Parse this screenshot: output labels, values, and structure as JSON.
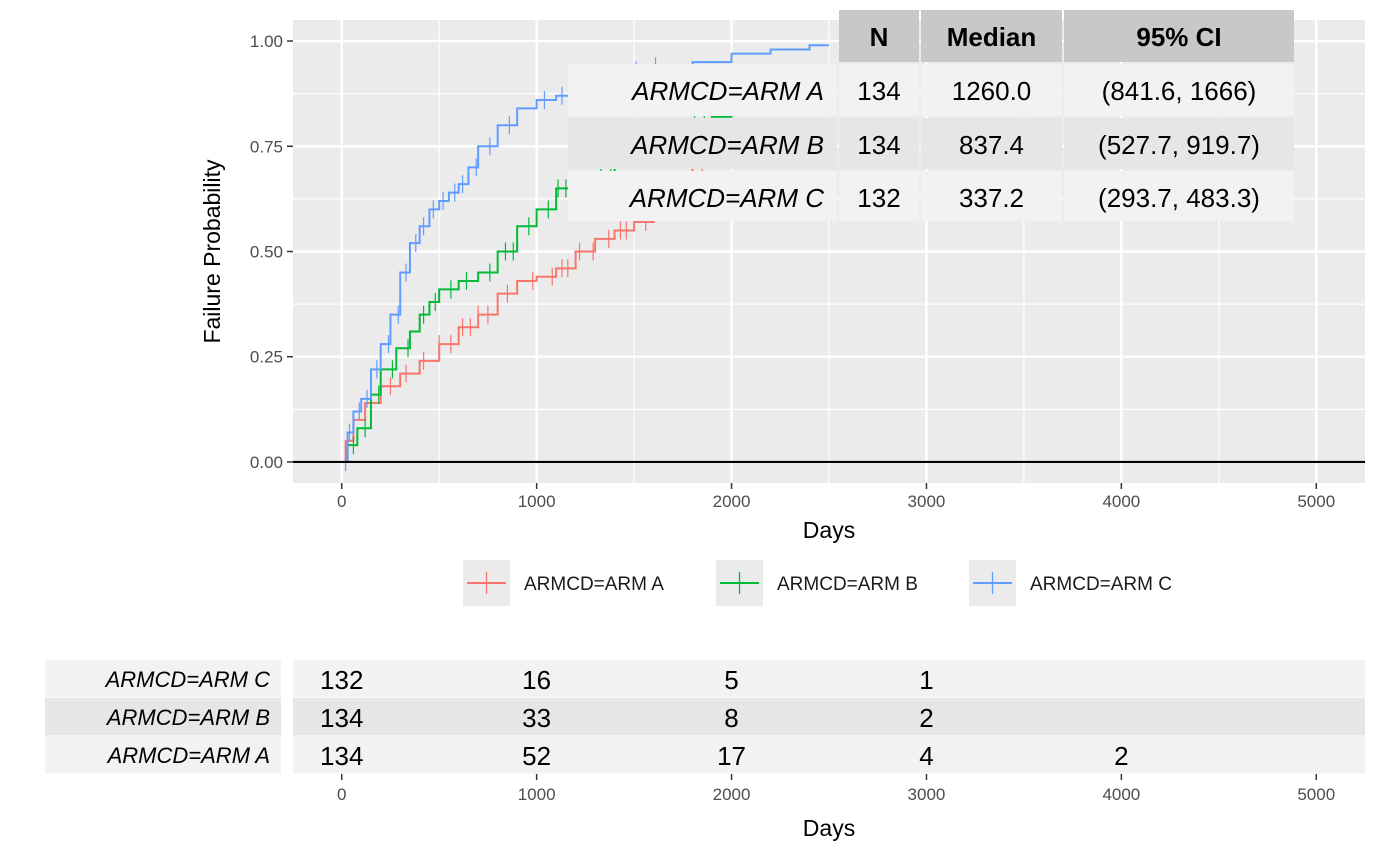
{
  "chart_data": {
    "type": "line",
    "step": true,
    "xlabel": "Days",
    "ylabel": "Failure Probability",
    "xlim": [
      -250,
      5250
    ],
    "ylim": [
      -0.05,
      1.05
    ],
    "x_ticks": [
      0,
      1000,
      2000,
      3000,
      4000,
      5000
    ],
    "y_ticks": [
      0.0,
      0.25,
      0.5,
      0.75,
      1.0
    ],
    "y_tick_labels": [
      "0.00",
      "0.25",
      "0.50",
      "0.75",
      "1.00"
    ],
    "grid": true,
    "reference_line_y": 0,
    "legend_position": "bottom",
    "series": [
      {
        "name": "ARMCD=ARM A",
        "color": "#F8766D",
        "points": [
          [
            0,
            0
          ],
          [
            20,
            0.05
          ],
          [
            60,
            0.1
          ],
          [
            120,
            0.14
          ],
          [
            200,
            0.18
          ],
          [
            300,
            0.21
          ],
          [
            400,
            0.24
          ],
          [
            500,
            0.28
          ],
          [
            600,
            0.32
          ],
          [
            700,
            0.35
          ],
          [
            800,
            0.4
          ],
          [
            900,
            0.43
          ],
          [
            1000,
            0.44
          ],
          [
            1100,
            0.46
          ],
          [
            1200,
            0.5
          ],
          [
            1300,
            0.53
          ],
          [
            1400,
            0.55
          ],
          [
            1500,
            0.57
          ],
          [
            1600,
            0.6
          ],
          [
            1700,
            0.66
          ],
          [
            1800,
            0.7
          ],
          [
            1900,
            0.71
          ],
          [
            2000,
            0.72
          ],
          [
            2100,
            0.73
          ],
          [
            2300,
            0.76
          ],
          [
            2400,
            0.81
          ],
          [
            2500,
            0.81
          ]
        ],
        "censor_x": [
          150,
          250,
          330,
          420,
          500,
          560,
          620,
          660,
          700,
          750,
          850,
          980,
          1080,
          1130,
          1160,
          1220,
          1290,
          1370,
          1430,
          1460,
          1560,
          1620,
          1750,
          1850,
          2050,
          2200,
          2320
        ]
      },
      {
        "name": "ARMCD=ARM B",
        "color": "#00BA38",
        "points": [
          [
            0,
            0
          ],
          [
            30,
            0.04
          ],
          [
            80,
            0.08
          ],
          [
            150,
            0.16
          ],
          [
            200,
            0.22
          ],
          [
            280,
            0.27
          ],
          [
            350,
            0.31
          ],
          [
            400,
            0.35
          ],
          [
            450,
            0.38
          ],
          [
            500,
            0.41
          ],
          [
            600,
            0.43
          ],
          [
            700,
            0.45
          ],
          [
            800,
            0.5
          ],
          [
            900,
            0.56
          ],
          [
            1000,
            0.6
          ],
          [
            1100,
            0.65
          ],
          [
            1200,
            0.66
          ],
          [
            1300,
            0.68
          ],
          [
            1400,
            0.72
          ],
          [
            1500,
            0.74
          ],
          [
            1600,
            0.75
          ],
          [
            1700,
            0.78
          ],
          [
            1800,
            0.8
          ],
          [
            1900,
            0.82
          ],
          [
            2000,
            0.84
          ],
          [
            2200,
            0.86
          ],
          [
            2400,
            0.87
          ],
          [
            2500,
            0.87
          ]
        ],
        "censor_x": [
          60,
          120,
          190,
          260,
          340,
          420,
          480,
          560,
          640,
          760,
          840,
          880,
          960,
          1060,
          1110,
          1150,
          1230,
          1260,
          1330,
          1380,
          1470,
          1580,
          1640,
          1680,
          1810,
          1860,
          1960
        ]
      },
      {
        "name": "ARMCD=ARM C",
        "color": "#619CFF",
        "points": [
          [
            0,
            0
          ],
          [
            30,
            0.07
          ],
          [
            60,
            0.12
          ],
          [
            100,
            0.15
          ],
          [
            150,
            0.22
          ],
          [
            200,
            0.28
          ],
          [
            250,
            0.35
          ],
          [
            300,
            0.45
          ],
          [
            350,
            0.52
          ],
          [
            400,
            0.56
          ],
          [
            450,
            0.6
          ],
          [
            500,
            0.62
          ],
          [
            550,
            0.64
          ],
          [
            600,
            0.66
          ],
          [
            650,
            0.7
          ],
          [
            700,
            0.75
          ],
          [
            800,
            0.8
          ],
          [
            900,
            0.84
          ],
          [
            1000,
            0.86
          ],
          [
            1100,
            0.87
          ],
          [
            1200,
            0.89
          ],
          [
            1300,
            0.91
          ],
          [
            1400,
            0.92
          ],
          [
            1500,
            0.93
          ],
          [
            1600,
            0.94
          ],
          [
            1800,
            0.95
          ],
          [
            2000,
            0.97
          ],
          [
            2200,
            0.98
          ],
          [
            2300,
            0.98
          ],
          [
            2400,
            0.99
          ],
          [
            2500,
            0.99
          ]
        ],
        "censor_x": [
          20,
          40,
          90,
          130,
          180,
          240,
          290,
          330,
          380,
          420,
          470,
          520,
          580,
          620,
          690,
          760,
          860,
          1040,
          1130,
          1230,
          1510,
          1610
        ]
      }
    ],
    "summary_table": {
      "headers": [
        "N",
        "Median",
        "95% CI"
      ],
      "rows": [
        {
          "label": "ARMCD=ARM A",
          "n": "134",
          "median": "1260.0",
          "ci": "(841.6, 1666)"
        },
        {
          "label": "ARMCD=ARM B",
          "n": "134",
          "median": "837.4",
          "ci": "(527.7, 919.7)"
        },
        {
          "label": "ARMCD=ARM C",
          "n": "132",
          "median": "337.2",
          "ci": "(293.7, 483.3)"
        }
      ]
    },
    "risk_table": {
      "xlabel": "Days",
      "x_ticks": [
        0,
        1000,
        2000,
        3000,
        4000,
        5000
      ],
      "rows": [
        {
          "label": "ARMCD=ARM C",
          "counts": [
            [
              0,
              "132"
            ],
            [
              1000,
              "16"
            ],
            [
              2000,
              "5"
            ],
            [
              3000,
              "1"
            ]
          ]
        },
        {
          "label": "ARMCD=ARM B",
          "counts": [
            [
              0,
              "134"
            ],
            [
              1000,
              "33"
            ],
            [
              2000,
              "8"
            ],
            [
              3000,
              "2"
            ]
          ]
        },
        {
          "label": "ARMCD=ARM A",
          "counts": [
            [
              0,
              "134"
            ],
            [
              1000,
              "52"
            ],
            [
              2000,
              "17"
            ],
            [
              3000,
              "4"
            ],
            [
              4000,
              "2"
            ]
          ]
        }
      ]
    }
  }
}
